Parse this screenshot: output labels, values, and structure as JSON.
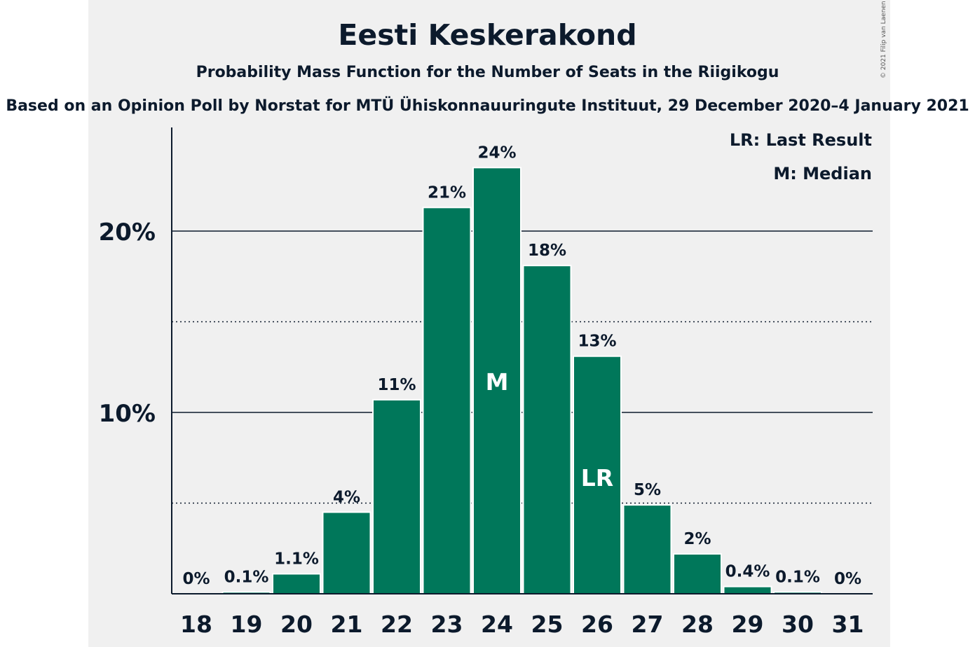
{
  "chart_data": {
    "type": "bar",
    "title": "Eesti Keskerakond",
    "subtitle": "Probability Mass Function for the Number of Seats in the Riigikogu",
    "source": "Based on an Opinion Poll by Norstat for MTÜ Ühiskonnauuringute Instituut, 29 December 2020–4 January 2021",
    "categories": [
      "18",
      "19",
      "20",
      "21",
      "22",
      "23",
      "24",
      "25",
      "26",
      "27",
      "28",
      "29",
      "30",
      "31"
    ],
    "values": [
      0,
      0.1,
      1.1,
      4.5,
      10.7,
      21.3,
      23.5,
      18.1,
      13.1,
      4.9,
      2.2,
      0.4,
      0.1,
      0
    ],
    "data_labels": [
      "0%",
      "0.1%",
      "1.1%",
      "4%",
      "11%",
      "21%",
      "24%",
      "18%",
      "13%",
      "5%",
      "2%",
      "0.4%",
      "0.1%",
      "0%"
    ],
    "bar_markers": [
      {
        "category": "24",
        "label": "M"
      },
      {
        "category": "26",
        "label": "LR"
      }
    ],
    "ylim": [
      0,
      25
    ],
    "yticks": [
      {
        "value": 10,
        "label": "10%"
      },
      {
        "value": 20,
        "label": "20%"
      }
    ],
    "minor_gridlines": [
      5,
      15
    ],
    "legend": [
      "LR: Last Result",
      "M: Median"
    ],
    "legend_position": "top-right",
    "bar_color": "#00775a",
    "text_color": "#0c1a2c",
    "grid": true
  },
  "copyright": "© 2021 Filip van Laenen"
}
